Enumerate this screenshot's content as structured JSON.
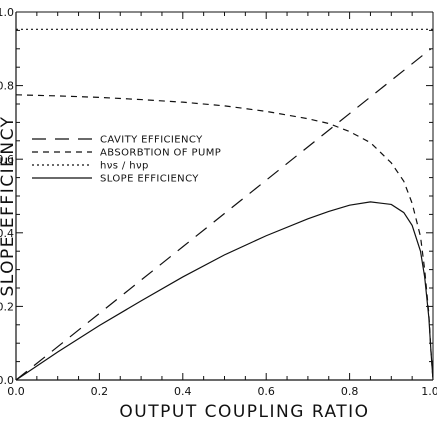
{
  "chart_data": {
    "type": "line",
    "title": "",
    "xlabel": "OUTPUT COUPLING RATIO",
    "ylabel": "SLOPE EFFICIENCY",
    "xlim": [
      0,
      1.0
    ],
    "ylim": [
      0,
      1.0
    ],
    "x_ticks": [
      "0.0",
      "0.2",
      "0.4",
      "0.6",
      "0.8",
      "1.0"
    ],
    "y_ticks": [
      "0.0",
      "0.2",
      "0.4",
      "0.6",
      "0.8",
      "1.0"
    ],
    "grid": false,
    "legend_position": "left-middle",
    "series": [
      {
        "name": "CAVITY EFFICIENCY",
        "style": "long-dash",
        "color": "#111111",
        "points": [
          [
            0,
            0
          ],
          [
            0.2,
            0.181
          ],
          [
            0.4,
            0.362
          ],
          [
            0.6,
            0.543
          ],
          [
            0.8,
            0.724
          ],
          [
            0.995,
            0.9
          ]
        ]
      },
      {
        "name": "ABSORBTION OF PUMP",
        "style": "dash",
        "color": "#111111",
        "points": [
          [
            0,
            0.775
          ],
          [
            0.1,
            0.772
          ],
          [
            0.2,
            0.768
          ],
          [
            0.3,
            0.762
          ],
          [
            0.4,
            0.755
          ],
          [
            0.5,
            0.745
          ],
          [
            0.6,
            0.73
          ],
          [
            0.7,
            0.71
          ],
          [
            0.75,
            0.697
          ],
          [
            0.8,
            0.675
          ],
          [
            0.85,
            0.645
          ],
          [
            0.9,
            0.59
          ],
          [
            0.93,
            0.54
          ],
          [
            0.95,
            0.48
          ],
          [
            0.97,
            0.39
          ],
          [
            0.98,
            0.3
          ],
          [
            0.99,
            0.18
          ],
          [
            0.995,
            0.08
          ],
          [
            1.0,
            0.0
          ]
        ]
      },
      {
        "name": "hν_s / hν_p",
        "legend_label": "hνs / hνp",
        "style": "dotted",
        "color": "#111111",
        "points": [
          [
            0,
            0.953
          ],
          [
            1.0,
            0.953
          ]
        ]
      },
      {
        "name": "SLOPE EFFICIENCY",
        "style": "solid",
        "color": "#111111",
        "points": [
          [
            0,
            0
          ],
          [
            0.1,
            0.076
          ],
          [
            0.2,
            0.148
          ],
          [
            0.3,
            0.215
          ],
          [
            0.4,
            0.28
          ],
          [
            0.5,
            0.34
          ],
          [
            0.6,
            0.392
          ],
          [
            0.7,
            0.438
          ],
          [
            0.75,
            0.458
          ],
          [
            0.8,
            0.475
          ],
          [
            0.85,
            0.484
          ],
          [
            0.9,
            0.477
          ],
          [
            0.93,
            0.455
          ],
          [
            0.95,
            0.42
          ],
          [
            0.97,
            0.35
          ],
          [
            0.98,
            0.28
          ],
          [
            0.99,
            0.17
          ],
          [
            0.995,
            0.08
          ],
          [
            1.0,
            0.0
          ]
        ]
      }
    ]
  }
}
